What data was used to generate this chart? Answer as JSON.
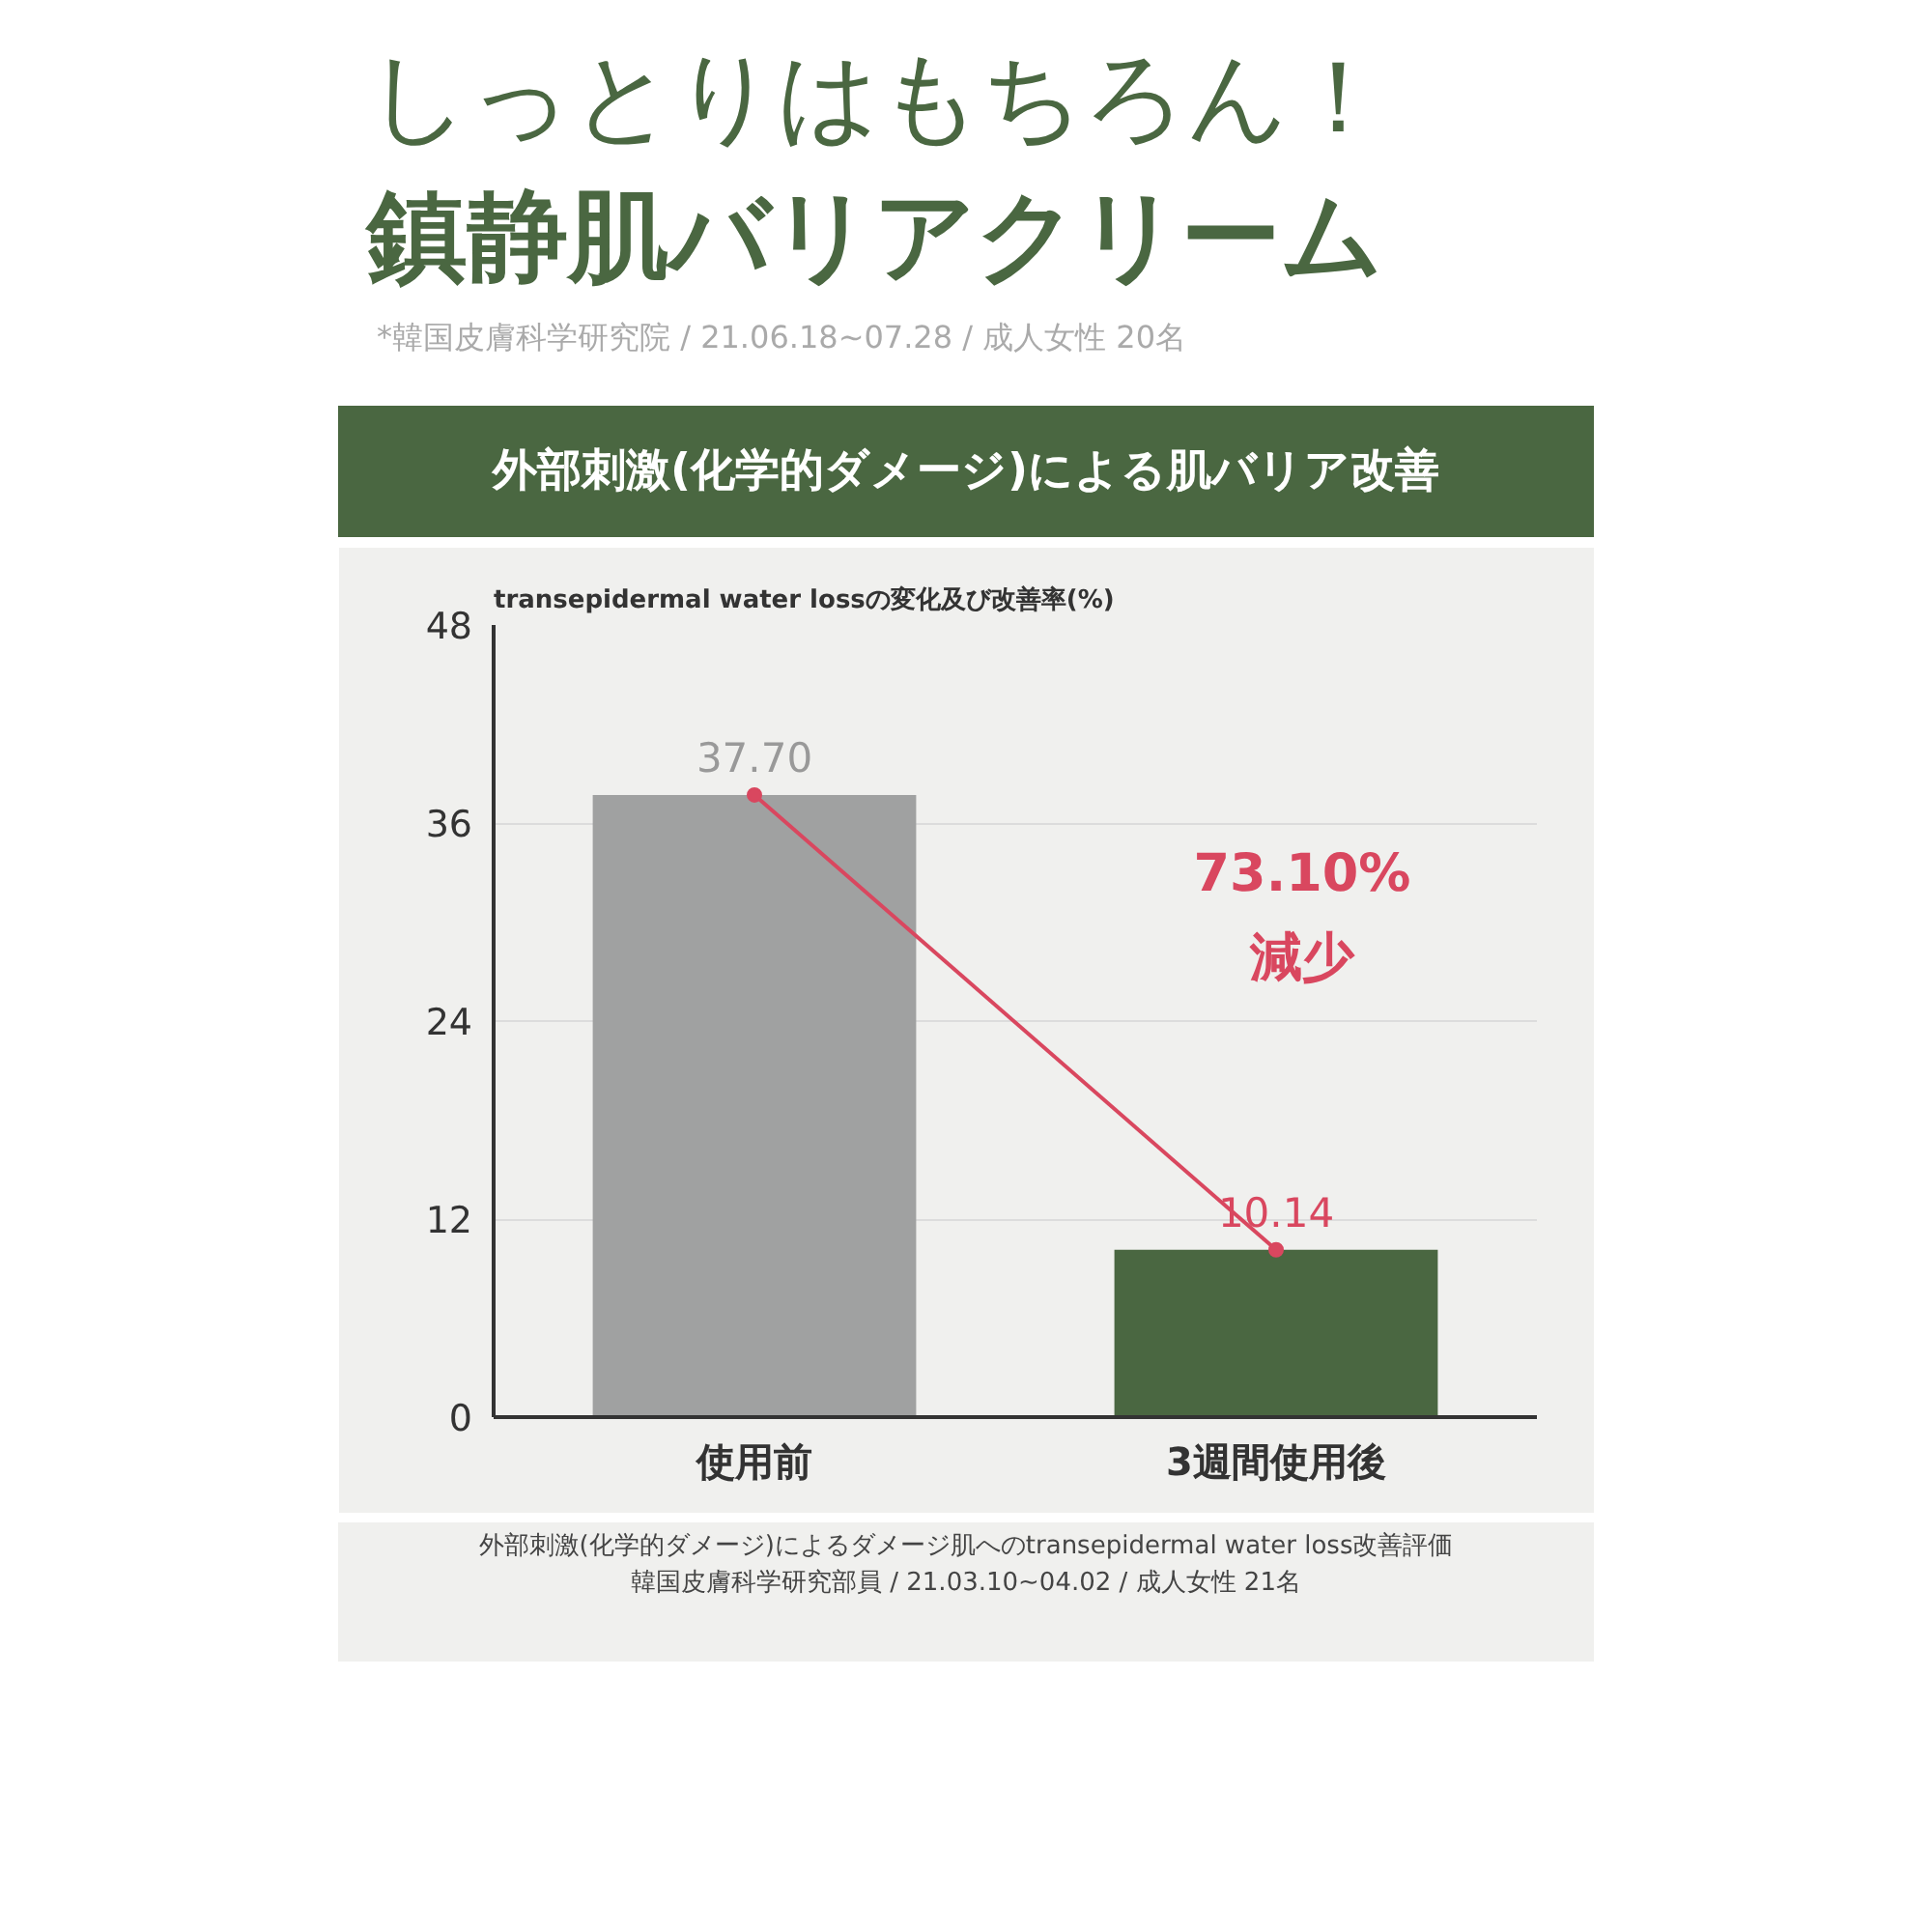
{
  "chart_data": {
    "type": "bar",
    "title": "しっとりはもちろん！",
    "subtitle": "鎮静肌バリアクリーム",
    "ylabel": "transepidermal water lossの変化及び改善率(%)",
    "annotations": [
      "*韓国皮膚科学研究院 / 21.06.18~07.28 / 成人女性 20名",
      "外部刺激(化学的ダメージ)による肌バリア改善",
      "73.10%\n減少",
      "外部刺激(化学的ダメージ)によるダメージ肌へのtransepidermal water loss改善評価",
      "韓国皮膚科学研究部員 / 21.03.10~04.02 / 成人女性 21名"
    ],
    "categories": [
      "使用前",
      "3週間使用後"
    ],
    "series": [
      {
        "values": [
          37.7,
          10.14
        ],
        "colors": [
          "#a0a1a1",
          "#4a6741"
        ],
        "value_labels": [
          "37.70",
          "10.14"
        ]
      },
      {
        "type": "line",
        "x": [
          "使用前",
          "3週間使用後"
        ],
        "values": [
          37.7,
          10.14
        ],
        "color": "#d9475f",
        "marker": "circle"
      }
    ],
    "ylim": [
      0,
      48
    ],
    "yticks": [
      0,
      12,
      24,
      36,
      48
    ],
    "grid": "y"
  }
}
